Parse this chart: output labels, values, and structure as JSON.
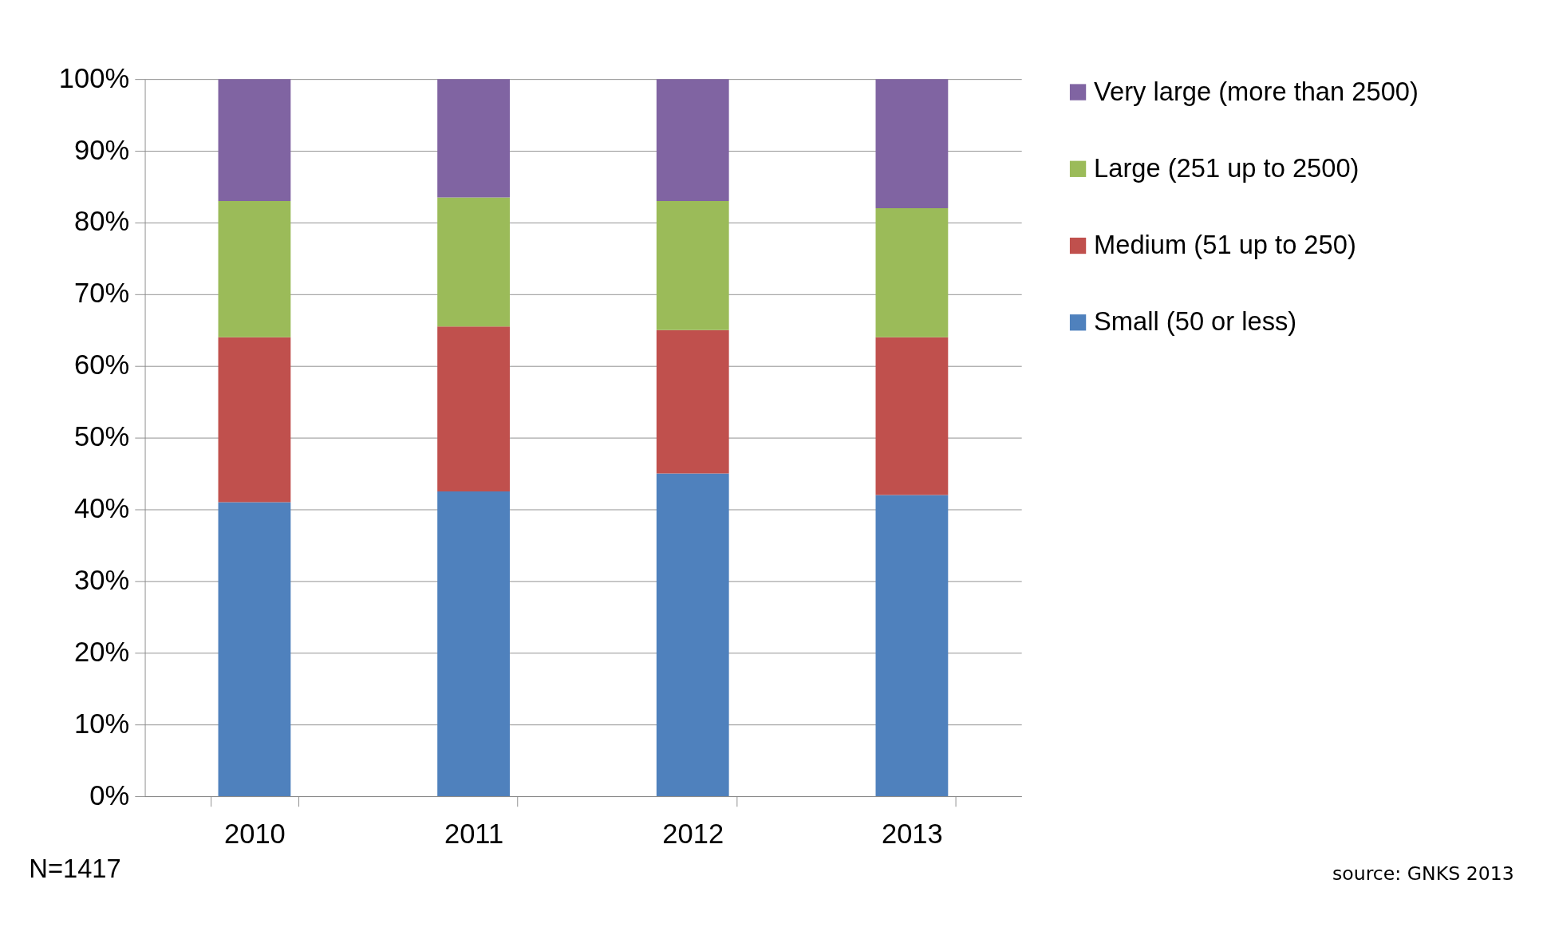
{
  "chart_data": {
    "type": "bar",
    "stacked": true,
    "categories": [
      "2010",
      "2011",
      "2012",
      "2013"
    ],
    "series": [
      {
        "name": "Small (50 or less)",
        "color": "#4f81bd",
        "values": [
          41,
          42.5,
          45,
          42
        ]
      },
      {
        "name": "Medium (51 up to 250)",
        "color": "#c0504d",
        "values": [
          23,
          23,
          20,
          22
        ]
      },
      {
        "name": "Large (251 up to 2500)",
        "color": "#9bbb59",
        "values": [
          19,
          18,
          18,
          18
        ]
      },
      {
        "name": "Very large (more than 2500)",
        "color": "#8064a2",
        "values": [
          17,
          16.5,
          17,
          18
        ]
      }
    ],
    "ylim": [
      0,
      100
    ],
    "yticks": [
      {
        "value": 0,
        "label": "0%"
      },
      {
        "value": 10,
        "label": "10%"
      },
      {
        "value": 20,
        "label": "20%"
      },
      {
        "value": 30,
        "label": "30%"
      },
      {
        "value": 40,
        "label": "40%"
      },
      {
        "value": 50,
        "label": "50%"
      },
      {
        "value": 60,
        "label": "60%"
      },
      {
        "value": 70,
        "label": "70%"
      },
      {
        "value": 80,
        "label": "80%"
      },
      {
        "value": 90,
        "label": "90%"
      },
      {
        "value": 100,
        "label": "100%"
      }
    ],
    "grid": "y",
    "legend": "right",
    "annotations": [
      "N=1417",
      "source: GNKS 2013"
    ]
  }
}
